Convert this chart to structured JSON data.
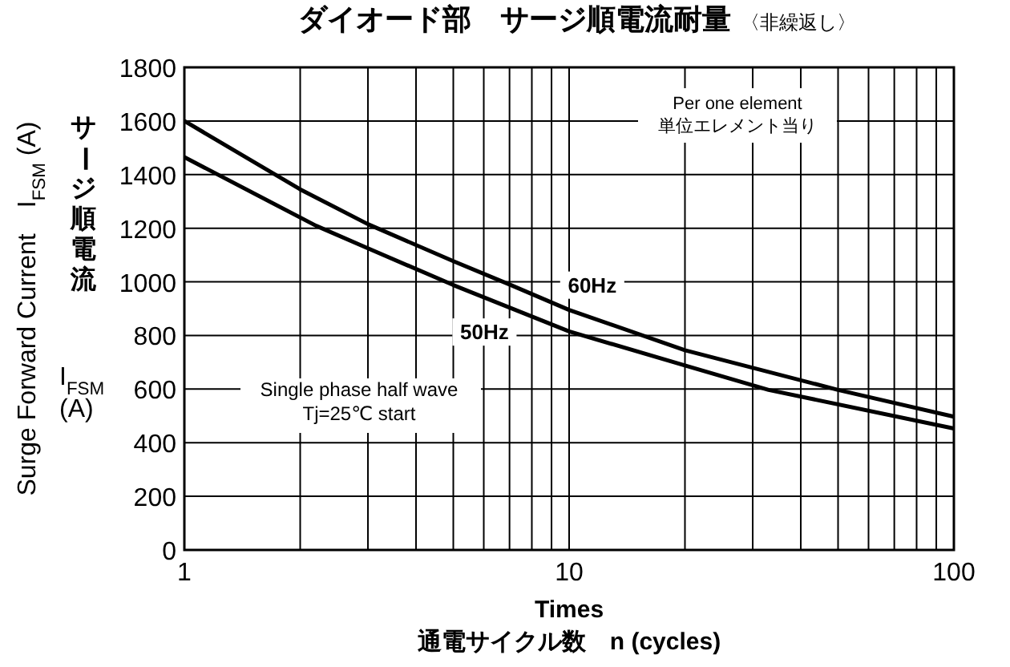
{
  "chart_data": {
    "type": "line",
    "title": "ダイオード部　サージ順電流耐量",
    "subtitle": "〈非繰返し〉",
    "xlabel": "Times\n通電サイクル数　n (cycles)",
    "ylabel": "Surge Forward Current　I$_{FSM}$ (A)",
    "log": "x",
    "xlim": [
      1,
      100
    ],
    "xticks": [
      1,
      {
        "value": 2,
        "label": null
      },
      {
        "value": 3,
        "label": null
      },
      {
        "value": 4,
        "label": null
      },
      {
        "value": 5,
        "label": null
      },
      {
        "value": 6,
        "label": null
      },
      {
        "value": 7,
        "label": null
      },
      {
        "value": 8,
        "label": null
      },
      {
        "value": 9,
        "label": null
      },
      10,
      {
        "value": 20,
        "label": null
      },
      {
        "value": 30,
        "label": null
      },
      {
        "value": 40,
        "label": null
      },
      {
        "value": 50,
        "label": null
      },
      {
        "value": 60,
        "label": null
      },
      {
        "value": 70,
        "label": null
      },
      {
        "value": 80,
        "label": null
      },
      {
        "value": 90,
        "label": null
      },
      100
    ],
    "ylim": [
      0,
      1800
    ],
    "yticks": [
      0,
      200,
      400,
      600,
      800,
      1000,
      1200,
      1400,
      1600,
      1800
    ],
    "grid": true,
    "marker": "none",
    "line_style": "solid",
    "series": [
      {
        "name": "60Hz",
        "color": "#000000",
        "x": [
          1,
          2,
          3,
          5,
          7,
          10,
          20,
          50,
          100
        ],
        "values": [
          1600,
          1345,
          1215,
          1077,
          990,
          895,
          745,
          597,
          497
        ]
      },
      {
        "name": "50Hz",
        "color": "#000000",
        "x": [
          1,
          2.2,
          3,
          5,
          10,
          20,
          33,
          100
        ],
        "values": [
          1465,
          1209,
          1125,
          988,
          815,
          688,
          597,
          453
        ]
      }
    ],
    "annotations": [
      "Per one element\n単位エレメント当り",
      "Single phase half wave\nTj=25℃ start",
      "サージ順電流",
      "I$_{FSM}$\n(A)"
    ]
  }
}
